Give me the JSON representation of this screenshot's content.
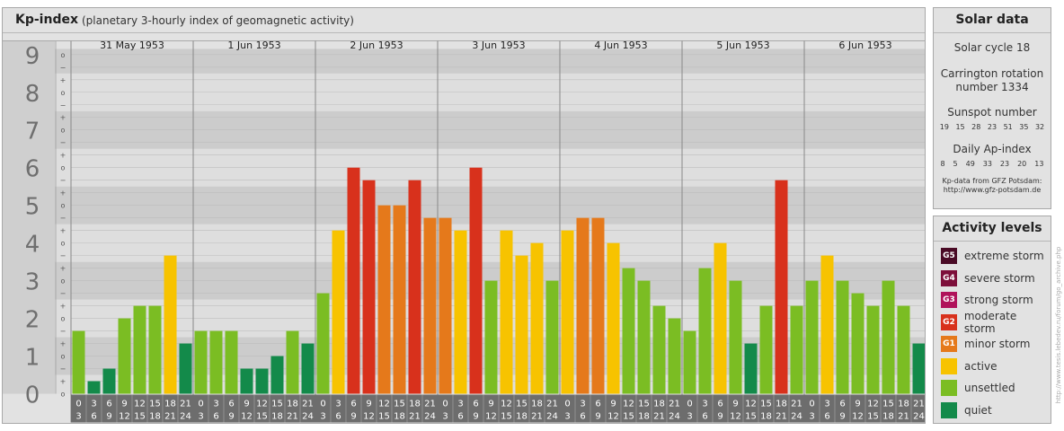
{
  "chart_data": {
    "type": "bar",
    "title": "Kp-index",
    "subtitle": "(planetary 3-hourly index of geomagnetic activity)",
    "ylim": [
      0,
      9
    ],
    "y_ticks": [
      "0",
      "1",
      "2",
      "3",
      "4",
      "5",
      "6",
      "7",
      "8",
      "9"
    ],
    "sub_ticks": [
      "o",
      "+",
      "−"
    ],
    "days": [
      "31 May 1953",
      "1 Jun 1953",
      "2 Jun 1953",
      "3 Jun 1953",
      "4 Jun 1953",
      "5 Jun 1953",
      "6 Jun 1953"
    ],
    "interval_start": [
      "0",
      "3",
      "6",
      "9",
      "12",
      "15",
      "18",
      "21"
    ],
    "interval_end": [
      "3",
      "6",
      "9",
      "12",
      "15",
      "18",
      "21",
      "24"
    ],
    "values": [
      [
        1.667,
        0.333,
        0.667,
        2.0,
        2.333,
        2.333,
        3.667,
        1.333
      ],
      [
        1.667,
        1.667,
        1.667,
        0.667,
        0.667,
        1.0,
        1.667,
        1.333
      ],
      [
        2.667,
        4.333,
        6.0,
        5.667,
        5.0,
        5.0,
        5.667,
        4.667
      ],
      [
        4.667,
        4.333,
        6.0,
        3.0,
        4.333,
        3.667,
        4.0,
        3.0
      ],
      [
        4.333,
        4.667,
        4.667,
        4.0,
        3.333,
        3.0,
        2.333,
        2.0
      ],
      [
        1.667,
        3.333,
        4.0,
        3.0,
        1.333,
        2.333,
        5.667,
        2.333
      ],
      [
        3.0,
        3.667,
        3.0,
        2.667,
        2.333,
        3.0,
        2.333,
        1.333
      ]
    ],
    "colors": {
      "quiet": "#138a4a",
      "unsettled": "#7bbd23",
      "active": "#f7c300",
      "G1": "#e5791b",
      "G2": "#d8311c",
      "G3": "#b0125a",
      "G4": "#7d0f3a",
      "G5": "#4a0b26"
    }
  },
  "solar": {
    "title": "Solar data",
    "cycle": "Solar cycle 18",
    "carrington_line1": "Carrington rotation",
    "carrington_line2": "number 1334",
    "sunspot_label": "Sunspot number",
    "sunspot_values": [
      "19",
      "15",
      "28",
      "23",
      "51",
      "35",
      "32"
    ],
    "ap_label": "Daily Ap-index",
    "ap_values": [
      "8",
      "5",
      "49",
      "33",
      "23",
      "20",
      "13"
    ],
    "source_line1": "Kp-data from GFZ Potsdam:",
    "source_line2": "http://www.gfz-potsdam.de"
  },
  "activity": {
    "title": "Activity levels",
    "levels": [
      {
        "code": "G5",
        "label": "extreme storm",
        "color": "#4a0b26"
      },
      {
        "code": "G4",
        "label": "severe storm",
        "color": "#7d0f3a"
      },
      {
        "code": "G3",
        "label": "strong storm",
        "color": "#b0125a"
      },
      {
        "code": "G2",
        "label": "moderate storm",
        "color": "#d8311c"
      },
      {
        "code": "G1",
        "label": "minor storm",
        "color": "#e5791b"
      },
      {
        "code": "",
        "label": "active",
        "color": "#f7c300"
      },
      {
        "code": "",
        "label": "unsettled",
        "color": "#7bbd23"
      },
      {
        "code": "",
        "label": "quiet",
        "color": "#138a4a"
      }
    ]
  },
  "credit": "http://www.tesis.lebedev.ru/forum/go_archive.php"
}
